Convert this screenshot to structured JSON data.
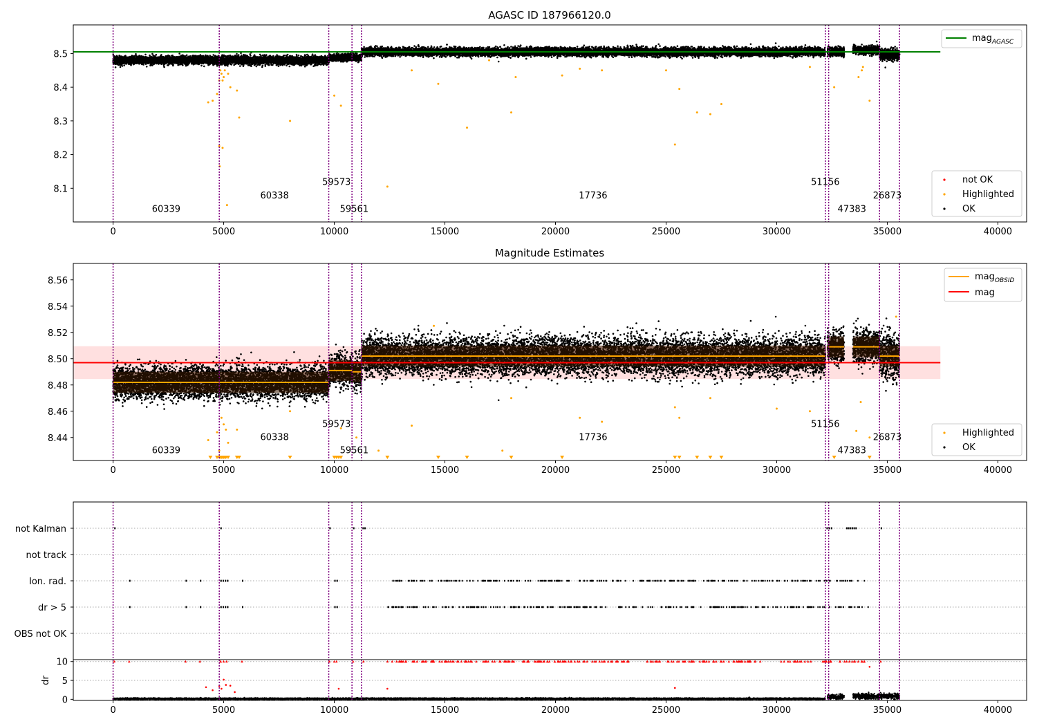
{
  "colors": {
    "ok": "#000000",
    "highlighted": "#ffa500",
    "not_ok": "#ff0000",
    "obsid_boundary": "#800080",
    "mag_agasc": "#008000",
    "mag_obsid": "#ffa500",
    "mag": "#ff0000",
    "mag_band": "#ffcccc"
  },
  "chart_data": [
    {
      "type": "scatter",
      "title": "AGASC ID 187966120.0",
      "xlim": [
        -1800,
        41300
      ],
      "ylim": [
        8.0,
        8.585
      ],
      "x_ticks": [
        0,
        5000,
        10000,
        15000,
        20000,
        25000,
        30000,
        35000,
        40000
      ],
      "x_tick_labels": [
        "0",
        "5000",
        "10000",
        "15000",
        "20000",
        "25000",
        "30000",
        "35000",
        "40000"
      ],
      "y_ticks": [
        8.1,
        8.2,
        8.3,
        8.4,
        8.5
      ],
      "y_tick_labels": [
        "8.1",
        "8.2",
        "8.3",
        "8.4",
        "8.5"
      ],
      "mag_agasc": 8.505,
      "mag_agasc_x_range": [
        -1800,
        37400
      ],
      "legend_top": {
        "placement": "upper right",
        "entries": [
          {
            "label": "mag",
            "sub": "AGASC"
          }
        ]
      },
      "legend_bottom": {
        "placement": "lower right",
        "entries": [
          "not OK",
          "Highlighted",
          "OK"
        ]
      },
      "ok_segments": [
        {
          "x": [
            0,
            9750
          ],
          "center": 8.48,
          "spread": 0.012
        },
        {
          "x": [
            9750,
            10800
          ],
          "center": 8.488,
          "spread": 0.01
        },
        {
          "x": [
            10800,
            11230
          ],
          "center": 8.488,
          "spread": 0.01
        },
        {
          "x": [
            11230,
            32200
          ],
          "center": 8.505,
          "spread": 0.012
        },
        {
          "x": [
            32300,
            33050
          ],
          "center": 8.505,
          "spread": 0.012
        },
        {
          "x": [
            33450,
            34650
          ],
          "center": 8.51,
          "spread": 0.012
        },
        {
          "x": [
            34650,
            35550
          ],
          "center": 8.497,
          "spread": 0.016
        }
      ],
      "highlighted_points": [
        [
          4850,
          8.45
        ],
        [
          4900,
          8.44
        ],
        [
          4950,
          8.42
        ],
        [
          5000,
          8.43
        ],
        [
          5050,
          8.45
        ],
        [
          4700,
          8.38
        ],
        [
          4500,
          8.36
        ],
        [
          4300,
          8.355
        ],
        [
          4800,
          8.42
        ],
        [
          5200,
          8.44
        ],
        [
          5300,
          8.4
        ],
        [
          5600,
          8.39
        ],
        [
          5700,
          8.31
        ],
        [
          4800,
          8.225
        ],
        [
          4950,
          8.22
        ],
        [
          4820,
          8.165
        ],
        [
          5150,
          8.05
        ],
        [
          8000,
          8.3
        ],
        [
          10000,
          8.375
        ],
        [
          10300,
          8.345
        ],
        [
          12400,
          8.105
        ],
        [
          13500,
          8.45
        ],
        [
          14700,
          8.41
        ],
        [
          16000,
          8.28
        ],
        [
          17000,
          8.48
        ],
        [
          18000,
          8.325
        ],
        [
          18200,
          8.43
        ],
        [
          20300,
          8.435
        ],
        [
          21100,
          8.455
        ],
        [
          22100,
          8.45
        ],
        [
          25400,
          8.23
        ],
        [
          25600,
          8.395
        ],
        [
          25000,
          8.45
        ],
        [
          26400,
          8.325
        ],
        [
          27000,
          8.32
        ],
        [
          27500,
          8.35
        ],
        [
          31500,
          8.46
        ],
        [
          32600,
          8.4
        ],
        [
          33700,
          8.43
        ],
        [
          33900,
          8.46
        ],
        [
          34200,
          8.36
        ],
        [
          33850,
          8.45
        ]
      ],
      "obsid_labels": [
        {
          "x": 2400,
          "y": 8.03,
          "text": "60339"
        },
        {
          "x": 7300,
          "y": 8.07,
          "text": "60338"
        },
        {
          "x": 10100,
          "y": 8.11,
          "text": "59573"
        },
        {
          "x": 10900,
          "y": 8.03,
          "text": "59561"
        },
        {
          "x": 21700,
          "y": 8.07,
          "text": "17736"
        },
        {
          "x": 32200,
          "y": 8.11,
          "text": "51156"
        },
        {
          "x": 33400,
          "y": 8.03,
          "text": "47383"
        },
        {
          "x": 35000,
          "y": 8.07,
          "text": "26873"
        }
      ],
      "obsid_boundaries": [
        0,
        4800,
        9750,
        10800,
        11230,
        32200,
        32350,
        34650,
        35550
      ]
    },
    {
      "type": "scatter",
      "title": "Magnitude Estimates",
      "xlim": [
        -1800,
        41300
      ],
      "ylim": [
        8.4225,
        8.5725
      ],
      "x_ticks": [
        0,
        5000,
        10000,
        15000,
        20000,
        25000,
        30000,
        35000,
        40000
      ],
      "x_tick_labels": [
        "0",
        "5000",
        "10000",
        "15000",
        "20000",
        "25000",
        "30000",
        "35000",
        "40000"
      ],
      "y_ticks": [
        8.44,
        8.46,
        8.48,
        8.5,
        8.52,
        8.54,
        8.56
      ],
      "y_tick_labels": [
        "8.44",
        "8.46",
        "8.48",
        "8.50",
        "8.52",
        "8.54",
        "8.56"
      ],
      "mag": 8.497,
      "mag_band": [
        8.4845,
        8.5095
      ],
      "mag_x_range": [
        -1800,
        37400
      ],
      "legend_top": {
        "placement": "upper right",
        "entries": [
          {
            "label": "mag",
            "sub": "OBSID"
          },
          {
            "label": "mag",
            "sub": ""
          }
        ]
      },
      "legend_bottom": {
        "placement": "lower right",
        "entries": [
          "Highlighted",
          "OK"
        ]
      },
      "ok_segments": [
        {
          "x": [
            0,
            9750
          ],
          "center": 8.482,
          "spread": 0.012,
          "mag_obsid": 8.482
        },
        {
          "x": [
            9750,
            10800
          ],
          "center": 8.491,
          "spread": 0.012,
          "mag_obsid": 8.491
        },
        {
          "x": [
            10800,
            11230
          ],
          "center": 8.49,
          "spread": 0.012,
          "mag_obsid": 8.49
        },
        {
          "x": [
            11230,
            32200
          ],
          "center": 8.502,
          "spread": 0.014,
          "mag_obsid": 8.502
        },
        {
          "x": [
            32300,
            33050
          ],
          "center": 8.509,
          "spread": 0.012,
          "mag_obsid": 8.509
        },
        {
          "x": [
            33450,
            34650
          ],
          "center": 8.509,
          "spread": 0.012,
          "mag_obsid": 8.509
        },
        {
          "x": [
            34650,
            35550
          ],
          "center": 8.502,
          "spread": 0.018,
          "mag_obsid": 8.502
        }
      ],
      "highlighted_points": [
        [
          4700,
          8.444
        ],
        [
          4900,
          8.455
        ],
        [
          5000,
          8.45
        ],
        [
          5100,
          8.446
        ],
        [
          4300,
          8.438
        ],
        [
          5200,
          8.436
        ],
        [
          5600,
          8.446
        ],
        [
          4800,
          8.43
        ],
        [
          8000,
          8.46
        ],
        [
          10300,
          8.447
        ],
        [
          11000,
          8.44
        ],
        [
          12000,
          8.43
        ],
        [
          13500,
          8.449
        ],
        [
          14500,
          8.525
        ],
        [
          17600,
          8.43
        ],
        [
          18000,
          8.47
        ],
        [
          21100,
          8.455
        ],
        [
          22100,
          8.452
        ],
        [
          25400,
          8.463
        ],
        [
          25600,
          8.455
        ],
        [
          27000,
          8.47
        ],
        [
          30000,
          8.462
        ],
        [
          31500,
          8.46
        ],
        [
          33800,
          8.467
        ],
        [
          33600,
          8.445
        ],
        [
          34200,
          8.44
        ],
        [
          35400,
          8.532
        ]
      ],
      "lower_limit_markers": [
        4400,
        4700,
        4800,
        4850,
        4900,
        4950,
        5000,
        5050,
        5100,
        5200,
        5600,
        5700,
        8000,
        10000,
        10100,
        10200,
        10300,
        12400,
        14700,
        16000,
        18000,
        20300,
        25400,
        25600,
        26400,
        27000,
        27500,
        32600,
        34200
      ],
      "obsid_labels": [
        {
          "x": 2400,
          "y": 8.428,
          "text": "60339"
        },
        {
          "x": 7300,
          "y": 8.438,
          "text": "60338"
        },
        {
          "x": 10100,
          "y": 8.448,
          "text": "59573"
        },
        {
          "x": 10900,
          "y": 8.428,
          "text": "59561"
        },
        {
          "x": 21700,
          "y": 8.438,
          "text": "17736"
        },
        {
          "x": 32200,
          "y": 8.448,
          "text": "51156"
        },
        {
          "x": 33400,
          "y": 8.428,
          "text": "47383"
        },
        {
          "x": 35000,
          "y": 8.438,
          "text": "26873"
        }
      ],
      "obsid_boundaries": [
        0,
        4800,
        9750,
        10800,
        11230,
        32200,
        32350,
        34650,
        35550
      ]
    },
    {
      "type": "scatter",
      "title": "",
      "xlim": [
        -1800,
        41300
      ],
      "categories": [
        "not Kalman",
        "not track",
        "Ion. rad.",
        "dr > 5",
        "OBS not OK"
      ],
      "flags": {
        "not Kalman": [
          [
            0,
            100
          ],
          [
            4800,
            4900
          ],
          [
            9750,
            9800
          ],
          [
            10800,
            10900
          ],
          [
            11230,
            11400
          ],
          [
            32200,
            32500
          ],
          [
            33100,
            33600
          ],
          [
            34650,
            34750
          ]
        ],
        "not track": [],
        "Ion. rad.": [
          [
            700,
            750
          ],
          [
            3250,
            3300
          ],
          [
            3900,
            3950
          ],
          [
            4800,
            5200
          ],
          [
            5800,
            5850
          ],
          [
            9950,
            10150
          ],
          [
            12400,
            34200
          ]
        ],
        "dr > 5": [
          [
            700,
            750
          ],
          [
            3250,
            3300
          ],
          [
            3900,
            3950
          ],
          [
            4800,
            5200
          ],
          [
            5800,
            5850
          ],
          [
            9950,
            10150
          ],
          [
            12400,
            34200
          ]
        ],
        "OBS not OK": []
      },
      "obsid_boundaries": [
        0,
        4800,
        9750,
        10800,
        11230,
        32200,
        32350,
        34650,
        35550
      ]
    },
    {
      "type": "scatter",
      "title": "",
      "xlim": [
        -1800,
        41300
      ],
      "ylabel": "dr",
      "ylim": [
        -0.3,
        10.5
      ],
      "y_ticks": [
        0,
        5,
        10
      ],
      "y_tick_labels": [
        "0",
        "5",
        "10"
      ],
      "x_ticks": [
        0,
        5000,
        10000,
        15000,
        20000,
        25000,
        30000,
        35000,
        40000
      ],
      "x_tick_labels": [
        "0",
        "5000",
        "10000",
        "15000",
        "20000",
        "25000",
        "30000",
        "35000",
        "40000"
      ],
      "ok_dr_segments": [
        {
          "x": [
            0,
            32200
          ],
          "center": 0.15,
          "spread": 0.15
        },
        {
          "x": [
            32300,
            33050
          ],
          "center": 0.6,
          "spread": 0.5
        },
        {
          "x": [
            33450,
            35550
          ],
          "center": 0.8,
          "spread": 0.6
        }
      ],
      "not_ok_clip": 10,
      "not_ok_points": [
        [
          4200,
          3.2
        ],
        [
          4500,
          2.4
        ],
        [
          4800,
          3.5
        ],
        [
          4900,
          2.8
        ],
        [
          5000,
          5.2
        ],
        [
          5100,
          3.8
        ],
        [
          5300,
          3.6
        ],
        [
          5500,
          1.9
        ],
        [
          10200,
          2.8
        ],
        [
          12400,
          2.8
        ],
        [
          25400,
          3.0
        ],
        [
          34200,
          8.6
        ]
      ],
      "obsid_boundaries": [
        0,
        4800,
        9750,
        10800,
        11230,
        32200,
        32350,
        34650,
        35550
      ]
    }
  ]
}
